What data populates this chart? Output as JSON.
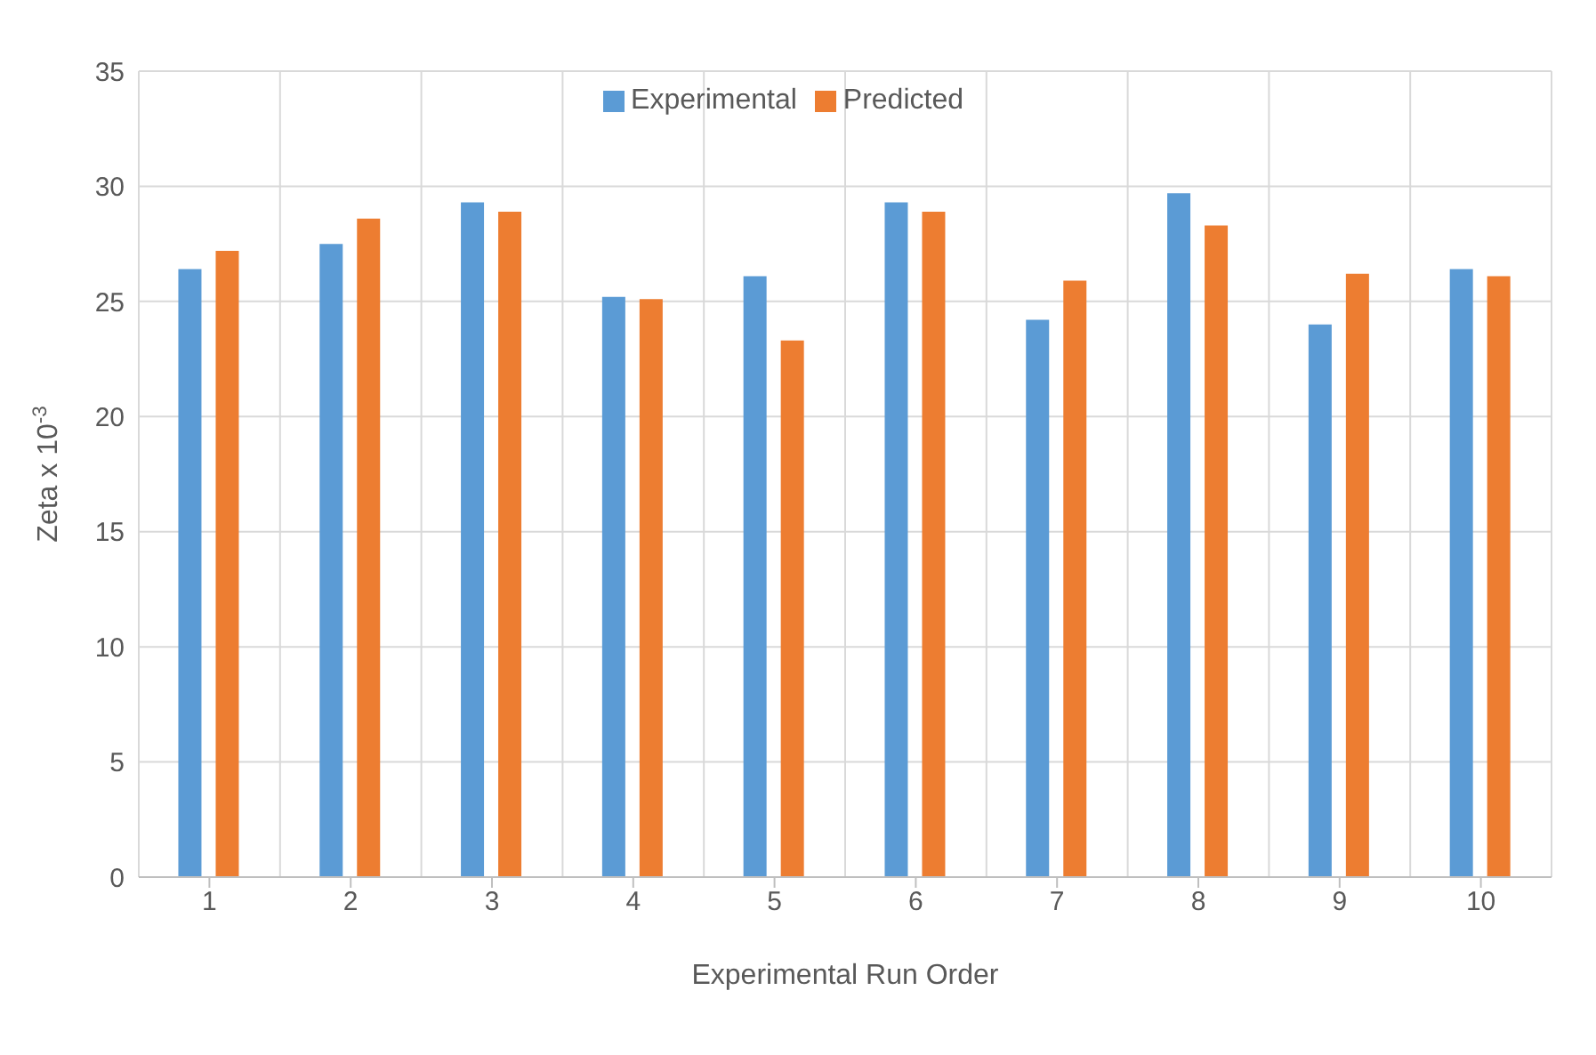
{
  "chart_data": {
    "type": "bar",
    "xlabel": "Experimental Run Order",
    "ylabel": "Zeta x 10$^{-3}$",
    "categories": [
      "1",
      "2",
      "3",
      "4",
      "5",
      "6",
      "7",
      "8",
      "9",
      "10"
    ],
    "series": [
      {
        "name": "Experimental",
        "color": "#5b9bd5",
        "values": [
          26.4,
          27.5,
          29.3,
          25.2,
          26.1,
          29.3,
          24.2,
          29.7,
          24.0,
          26.4
        ]
      },
      {
        "name": "Predicted",
        "color": "#ed7d31",
        "values": [
          27.2,
          28.6,
          28.9,
          25.1,
          23.3,
          28.9,
          25.9,
          28.3,
          26.2,
          26.1
        ]
      }
    ],
    "ylim": [
      0,
      35
    ],
    "yticks": [
      0,
      5,
      10,
      15,
      20,
      25,
      30,
      35
    ],
    "grid": true,
    "legend": "top"
  }
}
